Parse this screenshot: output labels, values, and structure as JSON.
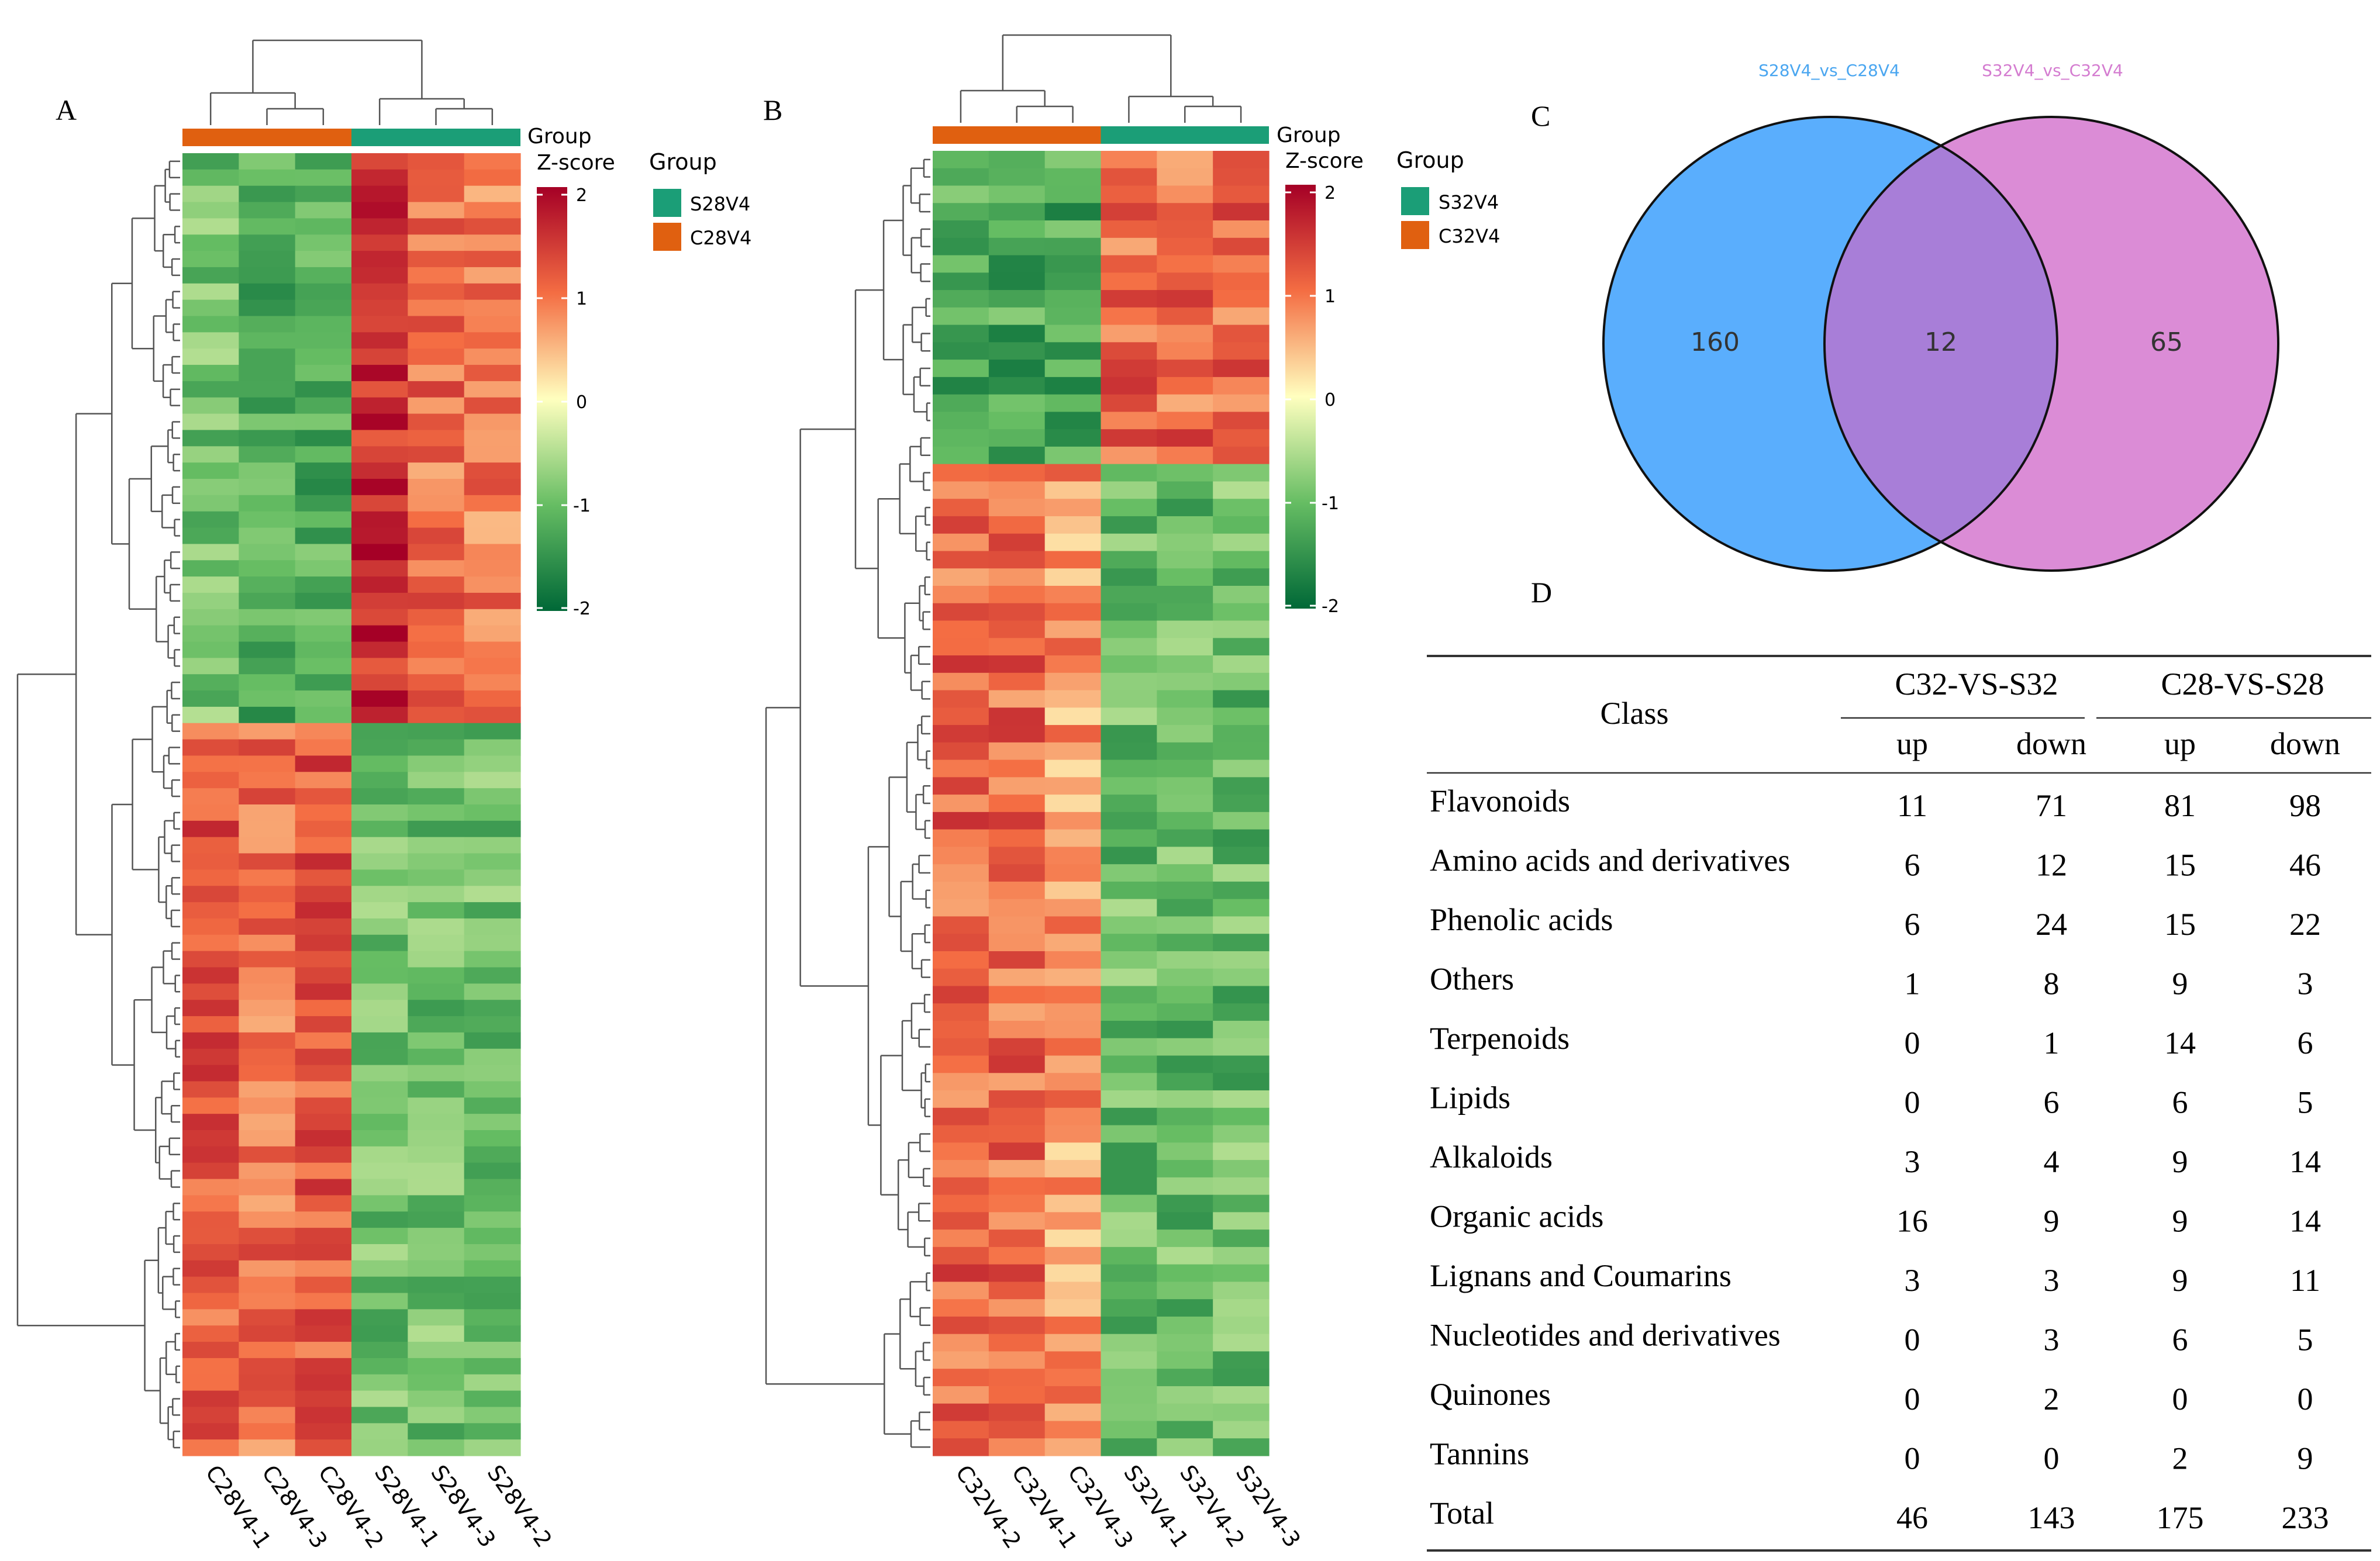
{
  "panels": {
    "a": "A",
    "b": "B",
    "c": "C",
    "d": "D"
  },
  "colors": {
    "green_group": "#1b9e77",
    "orange_group": "#e06010",
    "venn_left": "#5aaefd",
    "venn_right": "#db8cd6",
    "venn_overlap": "#a87ed8",
    "venn_left_label": "#4aa6f0",
    "venn_right_label": "#d47cd0"
  },
  "heatmap_a": {
    "group_title": "Group",
    "zscore_title": "Z-score",
    "legend_title": "Group",
    "legend": [
      {
        "label": "S28V4",
        "color": "#1b9e77"
      },
      {
        "label": "C28V4",
        "color": "#e06010"
      }
    ],
    "columns": [
      "C28V4-1",
      "C28V4-3",
      "C28V4-2",
      "S28V4-1",
      "S28V4-3",
      "S28V4-2"
    ],
    "scale_ticks": [
      "2",
      "1",
      "0",
      "-1",
      "-2"
    ]
  },
  "heatmap_b": {
    "group_title": "Group",
    "zscore_title": "Z-score",
    "legend_title": "Group",
    "legend": [
      {
        "label": "S32V4",
        "color": "#1b9e77"
      },
      {
        "label": "C32V4",
        "color": "#e06010"
      }
    ],
    "columns": [
      "C32V4-2",
      "C32V4-1",
      "C32V4-3",
      "S32V4-1",
      "S32V4-2",
      "S32V4-3"
    ],
    "scale_ticks": [
      "2",
      "1",
      "0",
      "-1",
      "-2"
    ]
  },
  "venn": {
    "left_label": "S28V4_vs_C28V4",
    "right_label": "S32V4_vs_C32V4",
    "left_only": "160",
    "overlap": "12",
    "right_only": "65"
  },
  "table": {
    "class_header": "Class",
    "group1": "C32-VS-S32",
    "group2": "C28-VS-S28",
    "sub": [
      "up",
      "down",
      "up",
      "down"
    ],
    "rows": [
      {
        "name": "Flavonoids",
        "v": [
          "11",
          "71",
          "81",
          "98"
        ]
      },
      {
        "name": "Amino acids and derivatives",
        "v": [
          "6",
          "12",
          "15",
          "46"
        ]
      },
      {
        "name": "Phenolic acids",
        "v": [
          "6",
          "24",
          "15",
          "22"
        ]
      },
      {
        "name": "Others",
        "v": [
          "1",
          "8",
          "9",
          "3"
        ]
      },
      {
        "name": "Terpenoids",
        "v": [
          "0",
          "1",
          "14",
          "6"
        ]
      },
      {
        "name": "Lipids",
        "v": [
          "0",
          "6",
          "6",
          "5"
        ]
      },
      {
        "name": "Alkaloids",
        "v": [
          "3",
          "4",
          "9",
          "14"
        ]
      },
      {
        "name": "Organic acids",
        "v": [
          "16",
          "9",
          "9",
          "14"
        ]
      },
      {
        "name": "Lignans and Coumarins",
        "v": [
          "3",
          "3",
          "9",
          "11"
        ]
      },
      {
        "name": "Nucleotides and derivatives",
        "v": [
          "0",
          "3",
          "6",
          "5"
        ]
      },
      {
        "name": "Quinones",
        "v": [
          "0",
          "2",
          "0",
          "0"
        ]
      },
      {
        "name": "Tannins",
        "v": [
          "0",
          "0",
          "2",
          "9"
        ]
      },
      {
        "name": "Total",
        "v": [
          "46",
          "143",
          "175",
          "233"
        ]
      }
    ]
  }
}
